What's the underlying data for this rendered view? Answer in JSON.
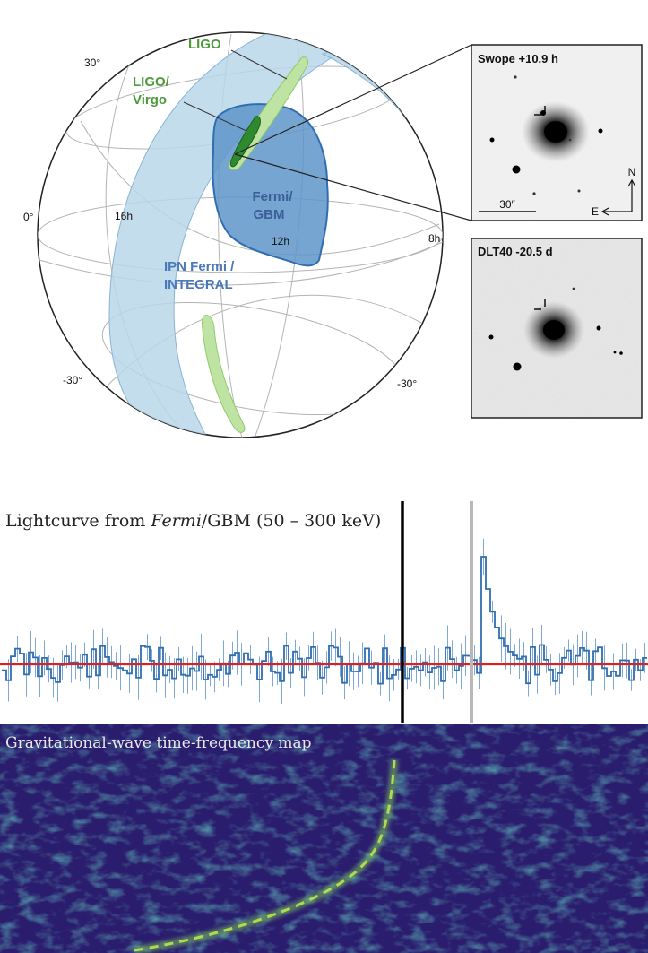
{
  "skymap": {
    "labels": {
      "ligo": "LIGO",
      "ligo_virgo_line1": "LIGO/",
      "ligo_virgo_line2": "Virgo",
      "fermi_gbm_line1": "Fermi/",
      "fermi_gbm_line2": "GBM",
      "ipn_line1": "IPN Fermi /",
      "ipn_line2": "INTEGRAL"
    },
    "dec_labels": {
      "top": "30°",
      "equator": "0°",
      "bottom_left": "-30°",
      "bottom_right": "-30°"
    },
    "ra_labels": {
      "ra16": "16h",
      "ra12": "12h",
      "ra8": "8h"
    },
    "colors": {
      "ipn_band": "#b9d7ea",
      "fermi_gbm": "#5f95c9",
      "ligo": "#bfe3a3",
      "ligo_virgo": "#2f8a2f",
      "label_green": "#4d9a3a",
      "label_blue": "#4a78b8",
      "outline_blue": "#2f6eb0"
    }
  },
  "insets": {
    "top": {
      "title": "Swope +10.9 h",
      "scale": "30″",
      "north": "N",
      "east": "E"
    },
    "bottom": {
      "title": "DLT40 -20.5 d"
    }
  },
  "lightcurve": {
    "title_prefix": "Lightcurve from ",
    "title_italic": "Fermi",
    "title_suffix": "/GBM (50 – 300 keV)",
    "colors": {
      "line": "#2f6eb0",
      "baseline": "#e02020",
      "gw_marker": "#000000",
      "grb_marker": "#b8b8b8"
    }
  },
  "gwmap": {
    "title": "Gravitational-wave time-frequency map",
    "colors": {
      "background": "#2b1d6e",
      "track": "#b9e64a"
    }
  }
}
